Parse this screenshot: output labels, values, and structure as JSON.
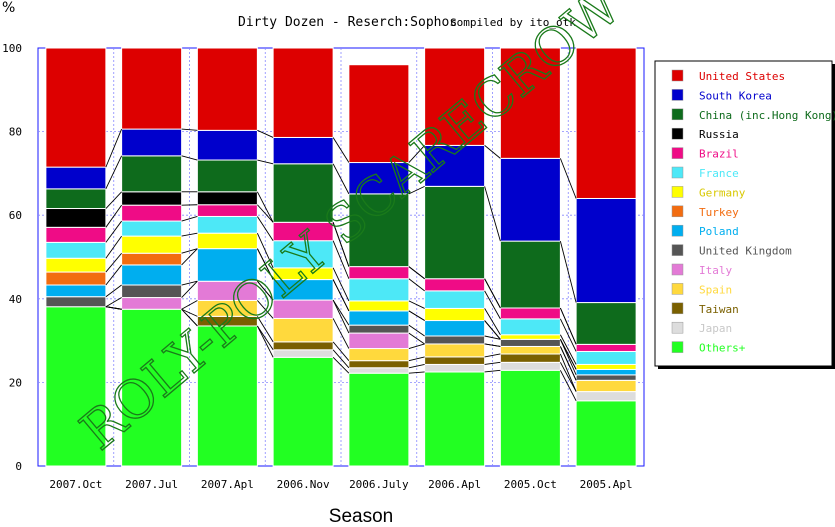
{
  "chart_data": {
    "type": "bar",
    "stacked": true,
    "title": "Dirty Dozen - Reserch:Sophos",
    "subtitle": "compiled by ito_otk",
    "xlabel": "Season",
    "ylabel": "%",
    "ylim": [
      0,
      100
    ],
    "yticks": [
      "0",
      "20",
      "40",
      "60",
      "80",
      "100"
    ],
    "grid": true,
    "legend_position": "right",
    "watermark": "ROLY-POLY SCARECROW",
    "categories": [
      "2007.Oct",
      "2007.Jul",
      "2007.Apl",
      "2006.Nov",
      "2006.July",
      "2006.Apl",
      "2005.Oct",
      "2005.Apl"
    ],
    "series": [
      {
        "name": "Others+",
        "color": "#22ff22",
        "values": [
          38.1,
          37.5,
          33.5,
          26.0,
          22.2,
          22.5,
          22.9,
          15.6
        ]
      },
      {
        "name": "Japan",
        "color": "#dddddd",
        "values": [
          0,
          0,
          0,
          1.8,
          1.3,
          1.8,
          1.9,
          2.2
        ]
      },
      {
        "name": "Taiwan",
        "color": "#7a6000",
        "values": [
          0,
          0,
          2.3,
          1.9,
          1.7,
          1.8,
          2.0,
          0
        ]
      },
      {
        "name": "Spain",
        "color": "#ffd93d",
        "values": [
          0,
          0,
          3.8,
          5.6,
          2.9,
          3.1,
          1.8,
          2.7
        ]
      },
      {
        "name": "Italy",
        "color": "#e37ad6",
        "values": [
          0,
          2.8,
          4.6,
          4.4,
          3.7,
          0,
          0,
          0
        ]
      },
      {
        "name": "United Kingdom",
        "color": "#555555",
        "values": [
          2.4,
          3.0,
          0,
          0,
          1.9,
          1.9,
          1.7,
          1.3
        ]
      },
      {
        "name": "Poland",
        "color": "#00aeef",
        "values": [
          2.8,
          4.8,
          7.8,
          4.9,
          3.4,
          3.7,
          0,
          1.3
        ]
      },
      {
        "name": "Turkey",
        "color": "#f26c10",
        "values": [
          3.1,
          2.8,
          0,
          0,
          0,
          0,
          0,
          0
        ]
      },
      {
        "name": "Germany",
        "color": "#ffff00",
        "values": [
          3.3,
          4.1,
          3.7,
          2.8,
          2.4,
          2.9,
          1.1,
          1.2
        ]
      },
      {
        "name": "France",
        "color": "#4de8f7",
        "values": [
          3.8,
          3.6,
          4.0,
          6.5,
          5.3,
          4.2,
          3.8,
          3.1
        ]
      },
      {
        "name": "Brazil",
        "color": "#ef0c86",
        "values": [
          3.6,
          3.8,
          2.8,
          4.4,
          2.9,
          2.9,
          2.6,
          1.7
        ]
      },
      {
        "name": "Russia",
        "color": "#000000",
        "values": [
          4.5,
          3.2,
          3.1,
          0,
          0,
          0,
          0,
          0
        ]
      },
      {
        "name": "China (inc.Hong Kong)",
        "color": "#0e6b1c",
        "values": [
          4.7,
          8.6,
          7.6,
          14.0,
          17.4,
          22.1,
          16.0,
          10.0
        ]
      },
      {
        "name": "South Korea",
        "color": "#0000cc",
        "values": [
          5.2,
          6.4,
          7.1,
          6.3,
          7.5,
          9.8,
          19.8,
          24.9
        ]
      },
      {
        "name": "United States",
        "color": "#dd0000",
        "values": [
          28.5,
          19.4,
          19.7,
          21.4,
          23.4,
          23.3,
          26.4,
          36.0
        ]
      }
    ]
  }
}
